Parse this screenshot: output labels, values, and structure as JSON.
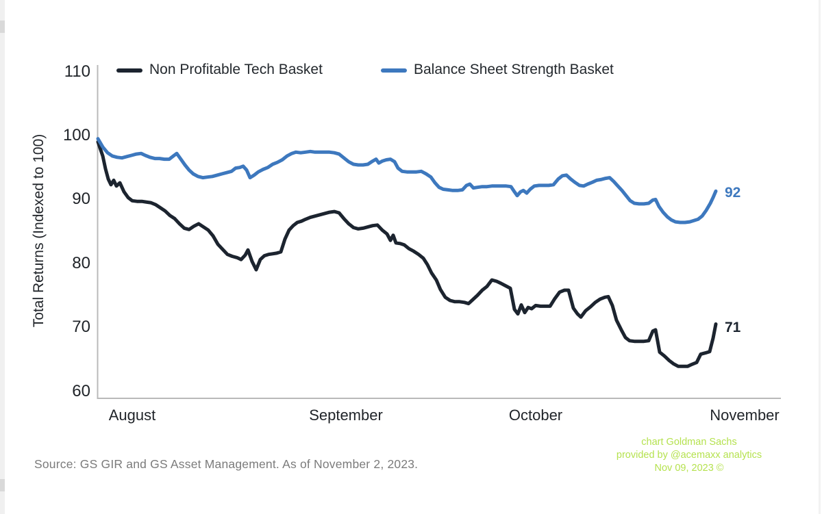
{
  "legend": {
    "items": [
      {
        "label": "Non Profitable Tech Basket"
      },
      {
        "label": "Balance Sheet Strength Basket"
      }
    ]
  },
  "y_axis": {
    "title": "Total Returns (Indexed to 100)",
    "ticks": [
      "110",
      "100",
      "90",
      "80",
      "70",
      "60"
    ]
  },
  "x_axis": {
    "labels": [
      "August",
      "September",
      "October",
      "November"
    ]
  },
  "annotations": {
    "black_end_label": "71",
    "blue_end_label": "92"
  },
  "source_note": "Source: GS GIR and GS Asset Management. As of November 2, 2023.",
  "watermark": {
    "lines": [
      "chart Goldman Sachs",
      "provided by @acemaxx analytics",
      "Nov 09, 2023 ©"
    ],
    "color": "#b5e24f"
  },
  "chart_data": {
    "type": "line",
    "title": "",
    "xlabel": "",
    "ylabel": "Total Returns (Indexed to 100)",
    "ylim": [
      60,
      110
    ],
    "y_ticks": [
      110,
      100,
      90,
      80,
      70,
      60
    ],
    "x_tick_labels": [
      "August",
      "September",
      "October",
      "November"
    ],
    "x_range_note": "daily total returns, Aug 1 2023 to Nov 2 2023",
    "grid": false,
    "legend_position": "top",
    "series": [
      {
        "name": "Non Profitable Tech Basket",
        "color": "#1c242f",
        "end_value": 71,
        "end_label": "71",
        "points": [
          [
            143,
            99.0
          ],
          [
            150,
            96.8
          ],
          [
            154,
            94.8
          ],
          [
            158,
            93.2
          ],
          [
            162,
            92.3
          ],
          [
            166,
            93.0
          ],
          [
            170,
            92.1
          ],
          [
            175,
            92.6
          ],
          [
            181,
            91.2
          ],
          [
            187,
            90.3
          ],
          [
            193,
            89.8
          ],
          [
            200,
            89.7
          ],
          [
            207,
            89.7
          ],
          [
            213,
            89.6
          ],
          [
            220,
            89.5
          ],
          [
            227,
            89.2
          ],
          [
            234,
            88.7
          ],
          [
            241,
            88.2
          ],
          [
            248,
            87.5
          ],
          [
            255,
            87.0
          ],
          [
            262,
            86.2
          ],
          [
            269,
            85.5
          ],
          [
            276,
            85.3
          ],
          [
            283,
            85.8
          ],
          [
            290,
            86.2
          ],
          [
            297,
            85.7
          ],
          [
            304,
            85.2
          ],
          [
            311,
            84.3
          ],
          [
            318,
            83.0
          ],
          [
            325,
            82.2
          ],
          [
            332,
            81.4
          ],
          [
            339,
            81.1
          ],
          [
            346,
            80.9
          ],
          [
            352,
            80.6
          ],
          [
            358,
            81.3
          ],
          [
            362,
            82.1
          ],
          [
            368,
            80.3
          ],
          [
            374,
            79.0
          ],
          [
            380,
            80.6
          ],
          [
            386,
            81.2
          ],
          [
            392,
            81.4
          ],
          [
            398,
            81.5
          ],
          [
            404,
            81.6
          ],
          [
            410,
            81.8
          ],
          [
            416,
            83.8
          ],
          [
            422,
            85.2
          ],
          [
            428,
            85.9
          ],
          [
            434,
            86.4
          ],
          [
            440,
            86.6
          ],
          [
            446,
            86.9
          ],
          [
            453,
            87.2
          ],
          [
            460,
            87.4
          ],
          [
            467,
            87.6
          ],
          [
            474,
            87.8
          ],
          [
            481,
            88.0
          ],
          [
            488,
            88.1
          ],
          [
            495,
            87.9
          ],
          [
            502,
            87.0
          ],
          [
            509,
            86.2
          ],
          [
            516,
            85.6
          ],
          [
            523,
            85.4
          ],
          [
            530,
            85.5
          ],
          [
            537,
            85.7
          ],
          [
            544,
            85.9
          ],
          [
            551,
            86.0
          ],
          [
            558,
            85.2
          ],
          [
            565,
            84.6
          ],
          [
            570,
            83.6
          ],
          [
            574,
            84.4
          ],
          [
            578,
            83.2
          ],
          [
            584,
            83.1
          ],
          [
            590,
            82.9
          ],
          [
            597,
            82.3
          ],
          [
            604,
            81.9
          ],
          [
            611,
            81.4
          ],
          [
            618,
            80.8
          ],
          [
            624,
            79.8
          ],
          [
            630,
            78.5
          ],
          [
            637,
            77.4
          ],
          [
            643,
            75.9
          ],
          [
            650,
            74.7
          ],
          [
            657,
            74.2
          ],
          [
            664,
            74.0
          ],
          [
            671,
            74.0
          ],
          [
            678,
            73.9
          ],
          [
            684,
            73.7
          ],
          [
            690,
            74.3
          ],
          [
            697,
            75.0
          ],
          [
            704,
            75.8
          ],
          [
            711,
            76.4
          ],
          [
            718,
            77.4
          ],
          [
            725,
            77.2
          ],
          [
            731,
            76.9
          ],
          [
            738,
            76.5
          ],
          [
            745,
            76.1
          ],
          [
            751,
            72.8
          ],
          [
            756,
            72.1
          ],
          [
            761,
            73.5
          ],
          [
            766,
            72.3
          ],
          [
            771,
            73.1
          ],
          [
            776,
            72.9
          ],
          [
            782,
            73.4
          ],
          [
            789,
            73.3
          ],
          [
            796,
            73.3
          ],
          [
            803,
            73.3
          ],
          [
            810,
            74.5
          ],
          [
            817,
            75.5
          ],
          [
            824,
            75.8
          ],
          [
            830,
            75.8
          ],
          [
            837,
            73.0
          ],
          [
            843,
            72.1
          ],
          [
            848,
            71.6
          ],
          [
            855,
            72.6
          ],
          [
            862,
            73.2
          ],
          [
            869,
            73.9
          ],
          [
            876,
            74.4
          ],
          [
            883,
            74.7
          ],
          [
            888,
            74.8
          ],
          [
            894,
            73.4
          ],
          [
            900,
            71.1
          ],
          [
            907,
            69.6
          ],
          [
            913,
            68.4
          ],
          [
            919,
            67.9
          ],
          [
            926,
            67.8
          ],
          [
            933,
            67.8
          ],
          [
            940,
            67.8
          ],
          [
            947,
            67.9
          ],
          [
            953,
            69.4
          ],
          [
            957,
            69.6
          ],
          [
            963,
            66.1
          ],
          [
            970,
            65.5
          ],
          [
            977,
            64.8
          ],
          [
            983,
            64.3
          ],
          [
            990,
            63.9
          ],
          [
            997,
            63.9
          ],
          [
            1004,
            63.9
          ],
          [
            1010,
            64.2
          ],
          [
            1017,
            64.5
          ],
          [
            1023,
            65.8
          ],
          [
            1030,
            66.0
          ],
          [
            1036,
            66.2
          ],
          [
            1041,
            68.3
          ],
          [
            1045,
            70.5
          ]
        ]
      },
      {
        "name": "Balance Sheet Strength Basket",
        "color": "#3d78be",
        "end_value": 92,
        "end_label": "92",
        "points": [
          [
            143,
            99.5
          ],
          [
            150,
            98.2
          ],
          [
            157,
            97.3
          ],
          [
            164,
            96.8
          ],
          [
            171,
            96.6
          ],
          [
            178,
            96.5
          ],
          [
            185,
            96.7
          ],
          [
            192,
            96.9
          ],
          [
            199,
            97.1
          ],
          [
            206,
            97.2
          ],
          [
            212,
            96.9
          ],
          [
            219,
            96.6
          ],
          [
            226,
            96.4
          ],
          [
            233,
            96.4
          ],
          [
            240,
            96.3
          ],
          [
            247,
            96.3
          ],
          [
            252,
            96.7
          ],
          [
            258,
            97.2
          ],
          [
            264,
            96.3
          ],
          [
            270,
            95.4
          ],
          [
            276,
            94.6
          ],
          [
            282,
            94.0
          ],
          [
            289,
            93.6
          ],
          [
            296,
            93.4
          ],
          [
            303,
            93.5
          ],
          [
            310,
            93.6
          ],
          [
            317,
            93.8
          ],
          [
            324,
            94.0
          ],
          [
            331,
            94.2
          ],
          [
            338,
            94.4
          ],
          [
            344,
            94.9
          ],
          [
            350,
            95.0
          ],
          [
            355,
            95.2
          ],
          [
            360,
            94.6
          ],
          [
            365,
            93.4
          ],
          [
            371,
            93.8
          ],
          [
            377,
            94.3
          ],
          [
            384,
            94.7
          ],
          [
            391,
            95.0
          ],
          [
            398,
            95.5
          ],
          [
            405,
            95.8
          ],
          [
            412,
            96.2
          ],
          [
            419,
            96.8
          ],
          [
            426,
            97.2
          ],
          [
            432,
            97.4
          ],
          [
            439,
            97.3
          ],
          [
            446,
            97.4
          ],
          [
            453,
            97.5
          ],
          [
            460,
            97.4
          ],
          [
            467,
            97.4
          ],
          [
            474,
            97.4
          ],
          [
            481,
            97.4
          ],
          [
            488,
            97.3
          ],
          [
            495,
            97.1
          ],
          [
            502,
            96.5
          ],
          [
            509,
            95.9
          ],
          [
            516,
            95.5
          ],
          [
            523,
            95.4
          ],
          [
            530,
            95.4
          ],
          [
            537,
            95.5
          ],
          [
            544,
            96.0
          ],
          [
            549,
            96.3
          ],
          [
            553,
            95.7
          ],
          [
            558,
            96.0
          ],
          [
            564,
            96.2
          ],
          [
            570,
            96.3
          ],
          [
            576,
            95.9
          ],
          [
            581,
            94.9
          ],
          [
            587,
            94.4
          ],
          [
            594,
            94.3
          ],
          [
            601,
            94.3
          ],
          [
            608,
            94.3
          ],
          [
            615,
            94.4
          ],
          [
            622,
            94.0
          ],
          [
            629,
            93.5
          ],
          [
            635,
            92.6
          ],
          [
            641,
            91.9
          ],
          [
            647,
            91.6
          ],
          [
            654,
            91.5
          ],
          [
            661,
            91.4
          ],
          [
            668,
            91.4
          ],
          [
            675,
            91.5
          ],
          [
            681,
            92.2
          ],
          [
            686,
            92.4
          ],
          [
            691,
            91.8
          ],
          [
            697,
            91.9
          ],
          [
            704,
            92.0
          ],
          [
            711,
            92.0
          ],
          [
            718,
            92.1
          ],
          [
            725,
            92.1
          ],
          [
            732,
            92.1
          ],
          [
            739,
            92.1
          ],
          [
            746,
            92.0
          ],
          [
            751,
            91.2
          ],
          [
            755,
            90.6
          ],
          [
            760,
            91.2
          ],
          [
            764,
            91.4
          ],
          [
            769,
            91.0
          ],
          [
            774,
            91.6
          ],
          [
            780,
            92.1
          ],
          [
            787,
            92.2
          ],
          [
            794,
            92.2
          ],
          [
            801,
            92.2
          ],
          [
            808,
            92.3
          ],
          [
            815,
            93.2
          ],
          [
            821,
            93.7
          ],
          [
            827,
            93.8
          ],
          [
            833,
            93.2
          ],
          [
            839,
            92.7
          ],
          [
            846,
            92.2
          ],
          [
            852,
            92.1
          ],
          [
            858,
            92.4
          ],
          [
            865,
            92.7
          ],
          [
            871,
            93.0
          ],
          [
            877,
            93.1
          ],
          [
            884,
            93.3
          ],
          [
            890,
            93.4
          ],
          [
            896,
            92.8
          ],
          [
            902,
            92.1
          ],
          [
            908,
            91.4
          ],
          [
            914,
            90.6
          ],
          [
            920,
            89.8
          ],
          [
            926,
            89.4
          ],
          [
            933,
            89.3
          ],
          [
            940,
            89.3
          ],
          [
            947,
            89.4
          ],
          [
            953,
            89.9
          ],
          [
            957,
            90.0
          ],
          [
            962,
            88.9
          ],
          [
            968,
            88.0
          ],
          [
            974,
            87.3
          ],
          [
            980,
            86.8
          ],
          [
            986,
            86.5
          ],
          [
            993,
            86.4
          ],
          [
            1000,
            86.4
          ],
          [
            1007,
            86.5
          ],
          [
            1013,
            86.7
          ],
          [
            1019,
            86.9
          ],
          [
            1025,
            87.4
          ],
          [
            1031,
            88.3
          ],
          [
            1037,
            89.4
          ],
          [
            1041,
            90.3
          ],
          [
            1045,
            91.3
          ]
        ]
      }
    ]
  }
}
